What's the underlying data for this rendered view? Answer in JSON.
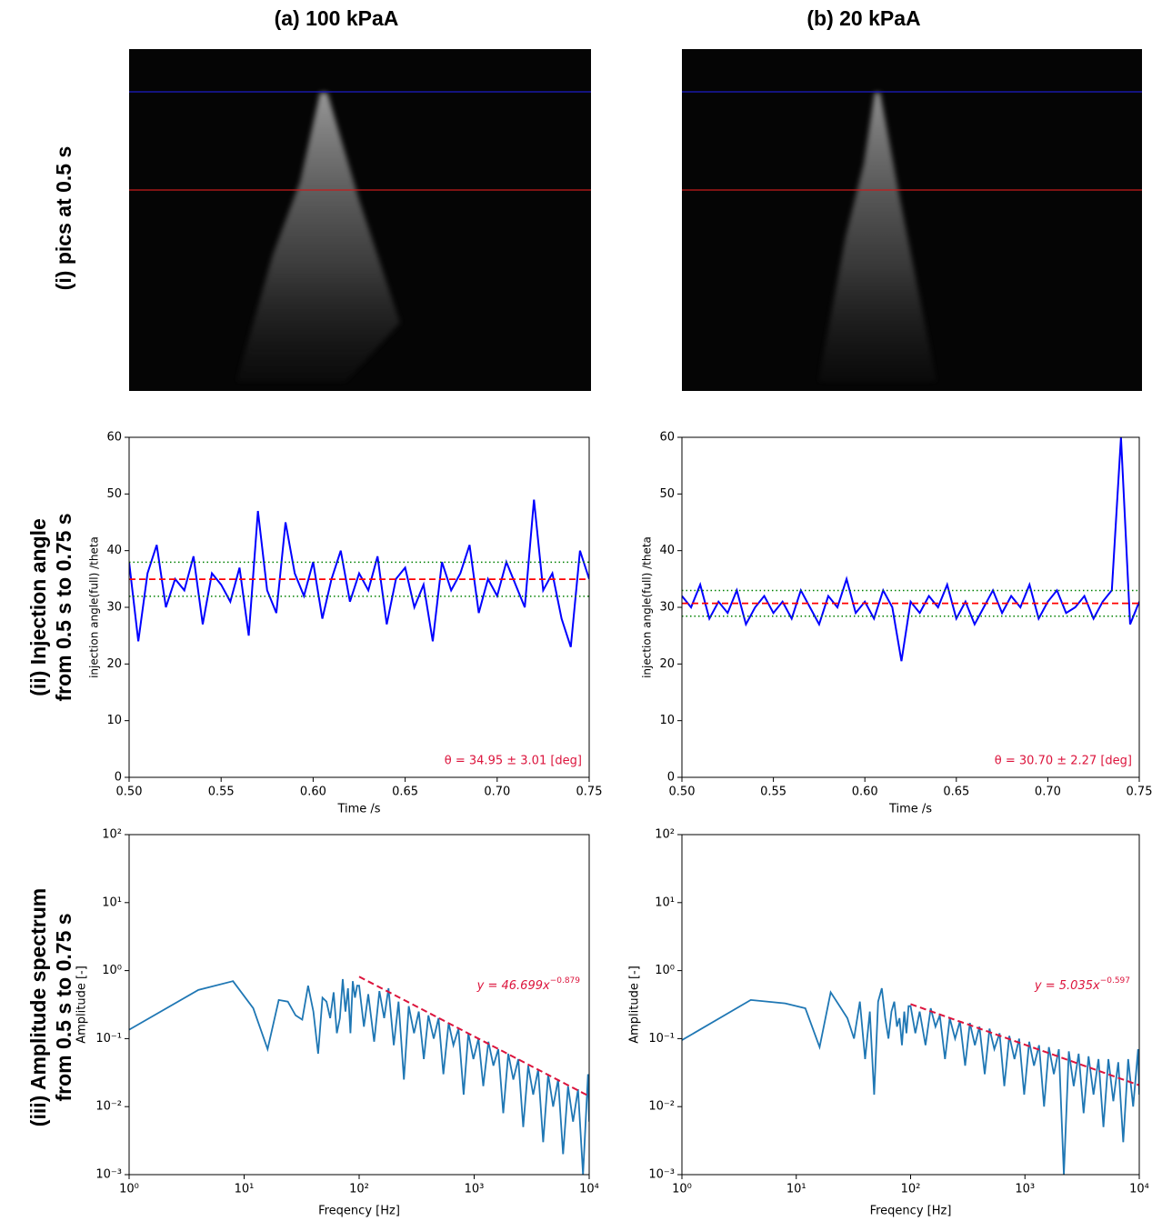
{
  "column_titles": [
    "(a) 100 kPaA",
    "(b) 20 kPaA"
  ],
  "row_labels": [
    [
      "(i) pics at 0.5 s"
    ],
    [
      "(ii) Injection angle",
      "from 0.5 s to 0.75 s"
    ],
    [
      "(iii) Amplitude spectrum",
      "from 0.5 s to 0.75 s"
    ]
  ],
  "chart_data": [
    {
      "type": "line",
      "x_label": "Time /s",
      "y_label": "injection angle(full) /theta",
      "annotation": "θ = 34.95 ± 3.01 [deg]",
      "mean": 34.95,
      "std": 3.01,
      "mean_color": "#ff0000",
      "std_color": "#008000",
      "xlim": [
        0.5,
        0.75
      ],
      "ylim": [
        0,
        60
      ],
      "xticks": [
        {
          "value": 0.5,
          "label": "0.50"
        },
        {
          "value": 0.55,
          "label": "0.55"
        },
        {
          "value": 0.6,
          "label": "0.60"
        },
        {
          "value": 0.65,
          "label": "0.65"
        },
        {
          "value": 0.7,
          "label": "0.70"
        },
        {
          "value": 0.75,
          "label": "0.75"
        }
      ],
      "yticks": [
        0,
        10,
        20,
        30,
        40,
        50,
        60
      ],
      "x": [
        0.5,
        0.505,
        0.51,
        0.515,
        0.52,
        0.525,
        0.53,
        0.535,
        0.54,
        0.545,
        0.55,
        0.555,
        0.56,
        0.565,
        0.57,
        0.575,
        0.58,
        0.585,
        0.59,
        0.595,
        0.6,
        0.605,
        0.61,
        0.615,
        0.62,
        0.625,
        0.63,
        0.635,
        0.64,
        0.645,
        0.65,
        0.655,
        0.66,
        0.665,
        0.67,
        0.675,
        0.68,
        0.685,
        0.69,
        0.695,
        0.7,
        0.705,
        0.71,
        0.715,
        0.72,
        0.725,
        0.73,
        0.735,
        0.74,
        0.745,
        0.75
      ],
      "series": [
        {
          "color": "#0000ff",
          "values": [
            38,
            24,
            36,
            41,
            30,
            35,
            33,
            39,
            27,
            36,
            34,
            31,
            37,
            25,
            47,
            33,
            29,
            45,
            36,
            32,
            38,
            28,
            35,
            40,
            31,
            36,
            33,
            39,
            27,
            35,
            37,
            30,
            34,
            24,
            38,
            33,
            36,
            41,
            29,
            35,
            32,
            38,
            34,
            30,
            49,
            33,
            36,
            28,
            23,
            40,
            35
          ]
        }
      ]
    },
    {
      "type": "line",
      "x_label": "Time /s",
      "y_label": "injection angle(full) /theta",
      "annotation": "θ = 30.70 ± 2.27 [deg]",
      "mean": 30.7,
      "std": 2.27,
      "mean_color": "#ff0000",
      "std_color": "#008000",
      "xlim": [
        0.5,
        0.75
      ],
      "ylim": [
        0,
        60
      ],
      "xticks": [
        {
          "value": 0.5,
          "label": "0.50"
        },
        {
          "value": 0.55,
          "label": "0.55"
        },
        {
          "value": 0.6,
          "label": "0.60"
        },
        {
          "value": 0.65,
          "label": "0.65"
        },
        {
          "value": 0.7,
          "label": "0.70"
        },
        {
          "value": 0.75,
          "label": "0.75"
        }
      ],
      "yticks": [
        0,
        10,
        20,
        30,
        40,
        50,
        60
      ],
      "x": [
        0.5,
        0.505,
        0.51,
        0.515,
        0.52,
        0.525,
        0.53,
        0.535,
        0.54,
        0.545,
        0.55,
        0.555,
        0.56,
        0.565,
        0.57,
        0.575,
        0.58,
        0.585,
        0.59,
        0.595,
        0.6,
        0.605,
        0.61,
        0.615,
        0.62,
        0.625,
        0.63,
        0.635,
        0.64,
        0.645,
        0.65,
        0.655,
        0.66,
        0.665,
        0.67,
        0.675,
        0.68,
        0.685,
        0.69,
        0.695,
        0.7,
        0.705,
        0.71,
        0.715,
        0.72,
        0.725,
        0.73,
        0.735,
        0.74,
        0.745,
        0.75
      ],
      "series": [
        {
          "color": "#0000ff",
          "values": [
            32,
            30,
            34,
            28,
            31,
            29,
            33,
            27,
            30,
            32,
            29,
            31,
            28,
            33,
            30,
            27,
            32,
            30,
            35,
            29,
            31,
            28,
            33,
            30,
            20.5,
            31,
            29,
            32,
            30,
            34,
            28,
            31,
            27,
            30,
            33,
            29,
            32,
            30,
            34,
            28,
            31,
            33,
            29,
            30,
            32,
            28,
            31,
            33,
            60,
            27,
            31
          ]
        }
      ]
    },
    {
      "type": "line",
      "log_scale": true,
      "x_label": "Freqency [Hz]",
      "y_label": "Amplitude [-]",
      "fit": {
        "label": "y = 46.699x",
        "exponent_label": "−0.879",
        "coefficient": 46.699,
        "exponent": -0.879,
        "xlim": [
          100,
          10000
        ],
        "color": "#dc143c"
      },
      "xlim": [
        1,
        10000
      ],
      "ylim": [
        0.001,
        100
      ],
      "xticks": [
        {
          "value": 1,
          "label": "10⁰"
        },
        {
          "value": 10,
          "label": "10¹"
        },
        {
          "value": 100,
          "label": "10²"
        },
        {
          "value": 1000,
          "label": "10³"
        },
        {
          "value": 10000,
          "label": "10⁴"
        }
      ],
      "yticks": [
        {
          "value": 0.001,
          "label": "10⁻³"
        },
        {
          "value": 0.01,
          "label": "10⁻²"
        },
        {
          "value": 0.1,
          "label": "10⁻¹"
        },
        {
          "value": 1,
          "label": "10⁰"
        },
        {
          "value": 10,
          "label": "10¹"
        },
        {
          "value": 100,
          "label": "10²"
        }
      ],
      "x": [
        1,
        4,
        8,
        12,
        16,
        20,
        24,
        28,
        32,
        36,
        40,
        44,
        48,
        52,
        56,
        60,
        64,
        68,
        72,
        76,
        80,
        84,
        88,
        92,
        96,
        100,
        110,
        120,
        135,
        150,
        165,
        180,
        200,
        220,
        245,
        270,
        300,
        330,
        365,
        400,
        445,
        490,
        540,
        600,
        660,
        730,
        810,
        890,
        985,
        1090,
        1200,
        1330,
        1470,
        1620,
        1790,
        1980,
        2190,
        2420,
        2670,
        2950,
        3260,
        3600,
        3980,
        4400,
        4860,
        5370,
        5930,
        6550,
        7240,
        8000,
        8840,
        9770,
        10000
      ],
      "series": [
        {
          "color": "#1f77b4",
          "values": [
            0.135,
            0.52,
            0.7,
            0.28,
            0.07,
            0.37,
            0.35,
            0.22,
            0.19,
            0.6,
            0.25,
            0.06,
            0.4,
            0.35,
            0.2,
            0.48,
            0.12,
            0.2,
            0.75,
            0.25,
            0.55,
            0.12,
            0.7,
            0.4,
            0.6,
            0.6,
            0.15,
            0.45,
            0.09,
            0.5,
            0.2,
            0.55,
            0.08,
            0.35,
            0.025,
            0.3,
            0.12,
            0.25,
            0.05,
            0.22,
            0.1,
            0.2,
            0.03,
            0.17,
            0.08,
            0.14,
            0.015,
            0.12,
            0.05,
            0.1,
            0.02,
            0.09,
            0.04,
            0.07,
            0.008,
            0.06,
            0.025,
            0.05,
            0.005,
            0.04,
            0.015,
            0.035,
            0.003,
            0.03,
            0.01,
            0.025,
            0.002,
            0.02,
            0.006,
            0.018,
            0.001,
            0.03,
            0.006
          ]
        }
      ]
    },
    {
      "type": "line",
      "log_scale": true,
      "x_label": "Freqency [Hz]",
      "y_label": "Amplitude [-]",
      "fit": {
        "label": "y = 5.035x",
        "exponent_label": "−0.597",
        "coefficient": 5.035,
        "exponent": -0.597,
        "xlim": [
          100,
          10000
        ],
        "color": "#dc143c"
      },
      "xlim": [
        1,
        10000
      ],
      "ylim": [
        0.001,
        100
      ],
      "xticks": [
        {
          "value": 1,
          "label": "10⁰"
        },
        {
          "value": 10,
          "label": "10¹"
        },
        {
          "value": 100,
          "label": "10²"
        },
        {
          "value": 1000,
          "label": "10³"
        },
        {
          "value": 10000,
          "label": "10⁴"
        }
      ],
      "yticks": [
        {
          "value": 0.001,
          "label": "10⁻³"
        },
        {
          "value": 0.01,
          "label": "10⁻²"
        },
        {
          "value": 0.1,
          "label": "10⁻¹"
        },
        {
          "value": 1,
          "label": "10⁰"
        },
        {
          "value": 10,
          "label": "10¹"
        },
        {
          "value": 100,
          "label": "10²"
        }
      ],
      "x": [
        1,
        4,
        8,
        12,
        16,
        20,
        24,
        28,
        32,
        36,
        40,
        44,
        48,
        52,
        56,
        60,
        64,
        68,
        72,
        76,
        80,
        84,
        88,
        92,
        96,
        100,
        110,
        120,
        135,
        150,
        165,
        180,
        200,
        220,
        245,
        270,
        300,
        330,
        365,
        400,
        445,
        490,
        540,
        600,
        660,
        730,
        810,
        890,
        985,
        1090,
        1200,
        1330,
        1470,
        1620,
        1790,
        1980,
        2190,
        2420,
        2670,
        2950,
        3260,
        3600,
        3980,
        4400,
        4860,
        5370,
        5930,
        6550,
        7240,
        8000,
        8840,
        9770,
        10000
      ],
      "series": [
        {
          "color": "#1f77b4",
          "values": [
            0.095,
            0.37,
            0.33,
            0.28,
            0.075,
            0.48,
            0.3,
            0.2,
            0.1,
            0.35,
            0.05,
            0.25,
            0.015,
            0.35,
            0.55,
            0.2,
            0.1,
            0.25,
            0.35,
            0.15,
            0.2,
            0.08,
            0.25,
            0.12,
            0.3,
            0.3,
            0.12,
            0.25,
            0.08,
            0.28,
            0.15,
            0.22,
            0.05,
            0.2,
            0.1,
            0.18,
            0.04,
            0.17,
            0.08,
            0.15,
            0.03,
            0.14,
            0.07,
            0.12,
            0.02,
            0.11,
            0.05,
            0.1,
            0.015,
            0.09,
            0.04,
            0.08,
            0.01,
            0.075,
            0.03,
            0.07,
            0.001,
            0.065,
            0.02,
            0.06,
            0.008,
            0.055,
            0.015,
            0.05,
            0.005,
            0.05,
            0.012,
            0.045,
            0.003,
            0.05,
            0.01,
            0.07,
            0.015
          ]
        }
      ]
    }
  ]
}
